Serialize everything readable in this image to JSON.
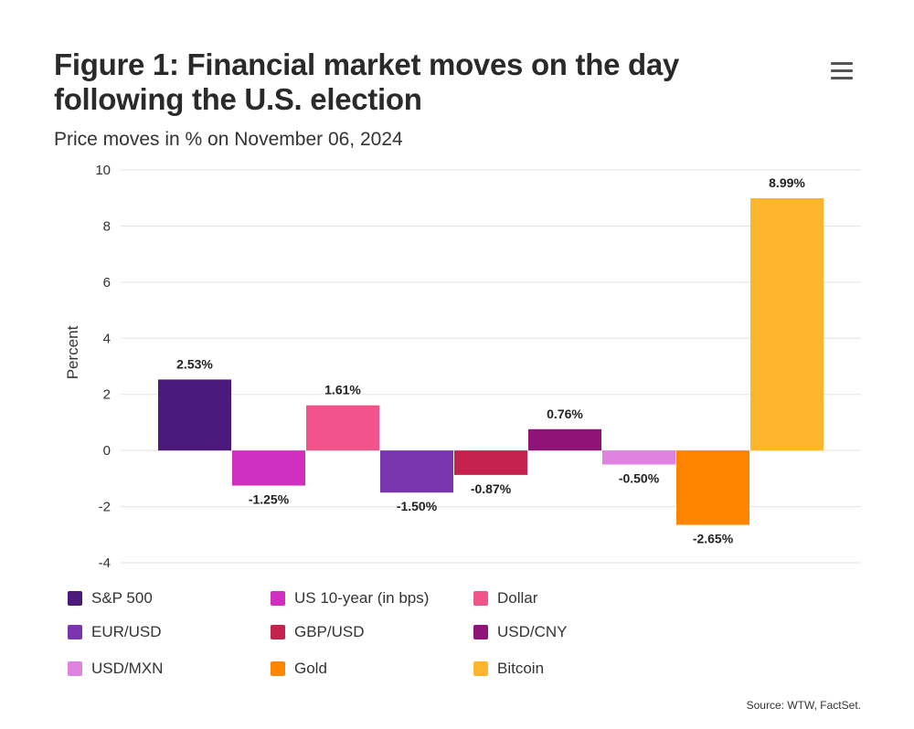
{
  "header": {
    "title": "Figure 1: Financial market moves on the day following the U.S. election",
    "subtitle": "Price moves in % on November 06, 2024",
    "menu_icon": "hamburger-menu-icon"
  },
  "chart_data": {
    "type": "bar",
    "title": "Figure 1: Financial market moves on the day following the U.S. election",
    "subtitle": "Price moves in % on November 06, 2024",
    "xlabel": "",
    "ylabel": "Percent",
    "ylim": [
      -4,
      10
    ],
    "yticks": [
      -4,
      -2,
      0,
      2,
      4,
      6,
      8,
      10
    ],
    "grid": true,
    "legend_position": "bottom",
    "categories": [
      "S&P 500",
      "US 10-year (in bps)",
      "Dollar",
      "EUR/USD",
      "GBP/USD",
      "USD/CNY",
      "USD/MXN",
      "Gold",
      "Bitcoin"
    ],
    "values": [
      2.53,
      -1.25,
      1.61,
      -1.5,
      -0.87,
      0.76,
      -0.5,
      -2.65,
      8.99
    ],
    "data_labels": [
      "2.53%",
      "-1.25%",
      "1.61%",
      "-1.50%",
      "-0.87%",
      "0.76%",
      "-0.50%",
      "-2.65%",
      "8.99%"
    ],
    "colors": [
      "#4b1a7a",
      "#d02fc0",
      "#f0548a",
      "#7a35ae",
      "#c4214f",
      "#8e1577",
      "#e082e0",
      "#ff8400",
      "#ffb52d"
    ]
  },
  "source": "Source: WTW, FactSet."
}
